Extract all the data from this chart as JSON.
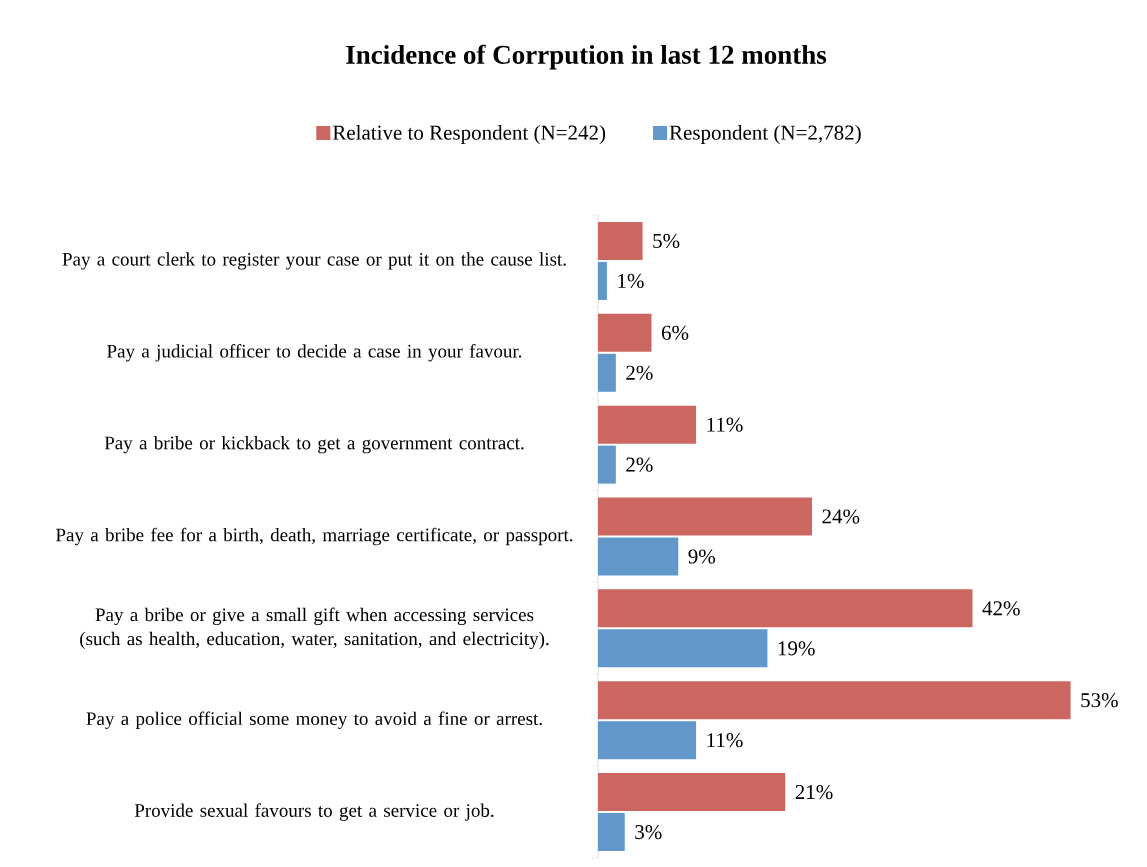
{
  "chart_data": {
    "type": "bar",
    "orientation": "horizontal",
    "title": "Incidence of Corrpution in last 12 months",
    "legend": "top",
    "categories": [
      "Pay a court clerk to register your case or put it on the cause list.",
      "Pay a judicial officer to decide a case in your favour.",
      "Pay a bribe or kickback to get a government contract.",
      "Pay a bribe fee for a birth, death, marriage certificate, or passport.",
      "Pay a bribe or give a small gift when accessing services (such as health, education, water, sanitation, and electricity).",
      "Pay a police official some money to avoid a fine or arrest.",
      "Provide sexual favours to get a service or job."
    ],
    "series": [
      {
        "name": "Relative to Respondent (N=242)",
        "color": "#cc6660",
        "values": [
          5,
          6,
          11,
          24,
          42,
          53,
          21
        ],
        "value_labels": [
          "5%",
          "6%",
          "11%",
          "24%",
          "42%",
          "53%",
          "21%"
        ]
      },
      {
        "name": "Respondent (N=2,782)",
        "color": "#6197cb",
        "values": [
          1,
          2,
          2,
          9,
          19,
          11,
          3
        ],
        "value_labels": [
          "1%",
          "2%",
          "2%",
          "9%",
          "19%",
          "11%",
          "3%"
        ]
      }
    ]
  }
}
